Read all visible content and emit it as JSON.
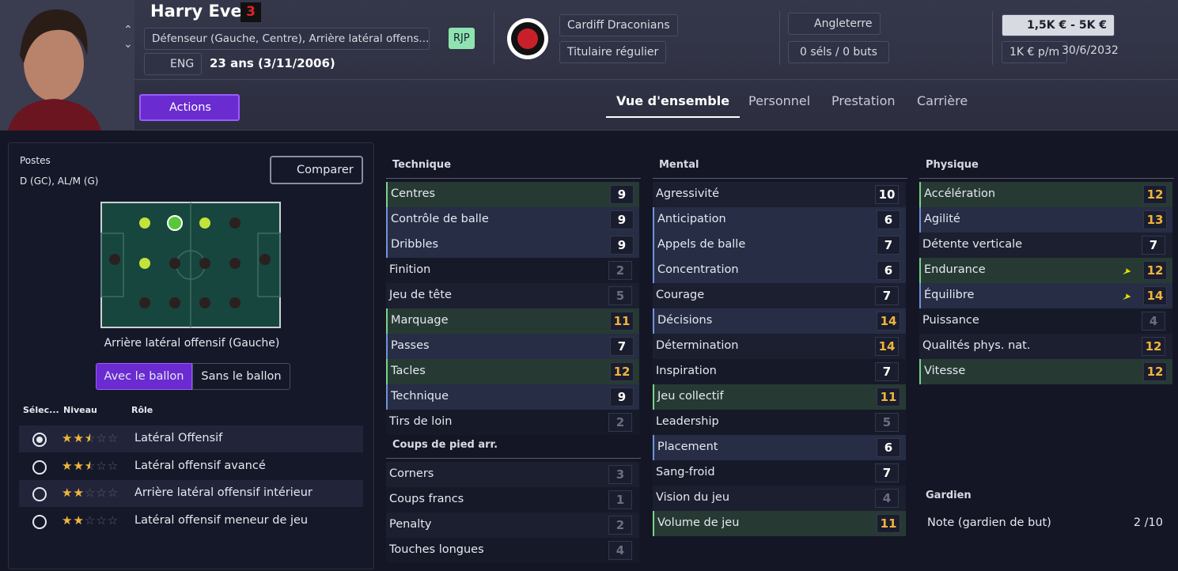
{
  "header": {
    "name": "Harry Evers",
    "number": "3",
    "positions": "Défenseur (Gauche, Centre), Arrière latéral offens...",
    "badge": "RJP",
    "nationality": "ENG",
    "age": "23 ans (3/11/2006)",
    "club": "Cardiff Draconians",
    "status": "Titulaire régulier",
    "country": "Angleterre",
    "caps": "0 séls / 0 buts",
    "value": "1,5K € - 5K €",
    "wage": "1K € p/m",
    "contract_end": "30/6/2032",
    "actions": "Actions"
  },
  "tabs": [
    "Vue d'ensemble",
    "Personnel",
    "Prestation",
    "Carrière"
  ],
  "positions_panel": {
    "label": "Postes",
    "value": "D (GC), AL/M (G)",
    "compare": "Comparer",
    "selected_role": "Arrière latéral offensif (Gauche)",
    "toggle": [
      "Avec le ballon",
      "Sans le ballon"
    ],
    "columns": [
      "Sélec...",
      "Niveau",
      "Rôle"
    ],
    "roles": [
      {
        "name": "Latéral Offensif",
        "stars": 2.5,
        "selected": true
      },
      {
        "name": "Latéral offensif avancé",
        "stars": 2.5,
        "selected": false
      },
      {
        "name": "Arrière latéral offensif intérieur",
        "stars": 2,
        "selected": false
      },
      {
        "name": "Latéral offensif meneur de jeu",
        "stars": 2,
        "selected": false
      }
    ]
  },
  "attribute_columns": [
    [
      {
        "title": "Technique",
        "items": [
          {
            "name": "Centres",
            "value": 9,
            "highlight": "green"
          },
          {
            "name": "Contrôle de balle",
            "value": 9,
            "highlight": "blue"
          },
          {
            "name": "Dribbles",
            "value": 9,
            "highlight": "blue"
          },
          {
            "name": "Finition",
            "value": 2
          },
          {
            "name": "Jeu de tête",
            "value": 5
          },
          {
            "name": "Marquage",
            "value": 11,
            "highlight": "green"
          },
          {
            "name": "Passes",
            "value": 7,
            "highlight": "blue"
          },
          {
            "name": "Tacles",
            "value": 12,
            "highlight": "green"
          },
          {
            "name": "Technique",
            "value": 9,
            "highlight": "blue"
          },
          {
            "name": "Tirs de loin",
            "value": 2
          }
        ]
      },
      {
        "title": "Coups de pied arr.",
        "items": [
          {
            "name": "Corners",
            "value": 3
          },
          {
            "name": "Coups francs",
            "value": 1
          },
          {
            "name": "Penalty",
            "value": 2
          },
          {
            "name": "Touches longues",
            "value": 4
          }
        ]
      }
    ],
    [
      {
        "title": "Mental",
        "items": [
          {
            "name": "Agressivité",
            "value": 10
          },
          {
            "name": "Anticipation",
            "value": 6,
            "highlight": "blue"
          },
          {
            "name": "Appels de balle",
            "value": 7,
            "highlight": "blue"
          },
          {
            "name": "Concentration",
            "value": 6,
            "highlight": "blue"
          },
          {
            "name": "Courage",
            "value": 7
          },
          {
            "name": "Décisions",
            "value": 14,
            "highlight": "blue"
          },
          {
            "name": "Détermination",
            "value": 14
          },
          {
            "name": "Inspiration",
            "value": 7
          },
          {
            "name": "Jeu collectif",
            "value": 11,
            "highlight": "green"
          },
          {
            "name": "Leadership",
            "value": 5
          },
          {
            "name": "Placement",
            "value": 6,
            "highlight": "blue"
          },
          {
            "name": "Sang-froid",
            "value": 7
          },
          {
            "name": "Vision du jeu",
            "value": 4
          },
          {
            "name": "Volume de jeu",
            "value": 11,
            "highlight": "green"
          }
        ]
      }
    ],
    [
      {
        "title": "Physique",
        "items": [
          {
            "name": "Accélération",
            "value": 12,
            "highlight": "green"
          },
          {
            "name": "Agilité",
            "value": 13,
            "highlight": "blue"
          },
          {
            "name": "Détente verticale",
            "value": 7
          },
          {
            "name": "Endurance",
            "value": 12,
            "highlight": "green",
            "trend": "up"
          },
          {
            "name": "Équilibre",
            "value": 14,
            "highlight": "blue",
            "trend": "up"
          },
          {
            "name": "Puissance",
            "value": 4
          },
          {
            "name": "Qualités phys. nat.",
            "value": 12
          },
          {
            "name": "Vitesse",
            "value": 12,
            "highlight": "green"
          }
        ]
      }
    ]
  ],
  "goalkeeper": {
    "title": "Gardien",
    "label": "Note (gardien de but)",
    "value": "2 /10"
  }
}
